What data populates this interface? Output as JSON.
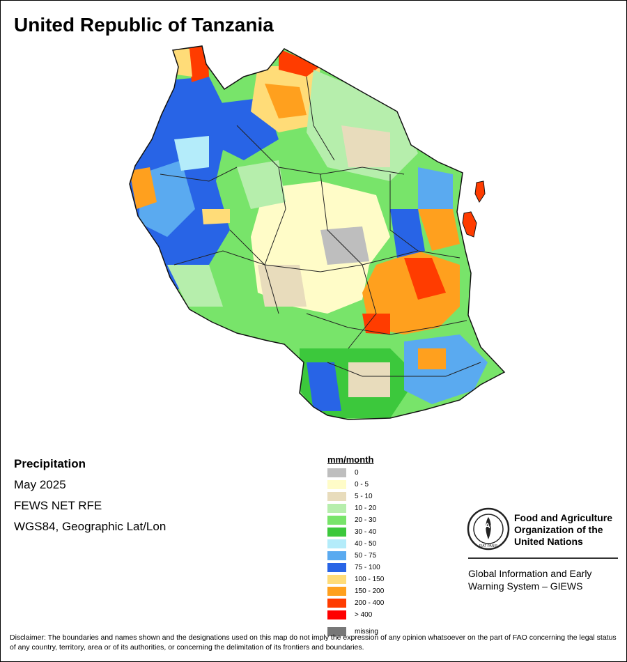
{
  "title": "United Republic of Tanzania",
  "info": {
    "variable": "Precipitation",
    "period": "May 2025",
    "source": "FEWS NET RFE",
    "projection": "WGS84, Geographic Lat/Lon"
  },
  "legend": {
    "unit": "mm/month",
    "classes": [
      {
        "label": "0",
        "color": "#bebebe"
      },
      {
        "label": "0 - 5",
        "color": "#fffcc8"
      },
      {
        "label": "5 - 10",
        "color": "#e8dcbc"
      },
      {
        "label": "10 - 20",
        "color": "#b6eeac"
      },
      {
        "label": "20 - 30",
        "color": "#78e46a"
      },
      {
        "label": "30 - 40",
        "color": "#3cc83c"
      },
      {
        "label": "40 - 50",
        "color": "#b4ecfa"
      },
      {
        "label": "50 - 75",
        "color": "#5aaaf0"
      },
      {
        "label": "75 - 100",
        "color": "#2864e6"
      },
      {
        "label": "100 - 150",
        "color": "#ffdc78"
      },
      {
        "label": "150 - 200",
        "color": "#ffa01e"
      },
      {
        "label": "200 - 400",
        "color": "#ff3c00"
      },
      {
        "label": "> 400",
        "color": "#ff0000"
      }
    ],
    "missing": {
      "label": "missing",
      "color": "#777777"
    }
  },
  "organization": {
    "logo_text": "FAO",
    "logo_motto": "FIAT PANIS",
    "name_lines": [
      "Food and Agriculture",
      "Organization of the",
      "United Nations"
    ],
    "system_lines": [
      "Global Information and Early",
      "Warning System – GIEWS"
    ]
  },
  "disclaimer": "Disclaimer: The boundaries and names shown and the designations used on this map do not imply the expression of any opinion whatsoever on the part of FAO concerning the legal status of any country, territory, area or of its authorities, or concerning the delimitation of its frontiers and boundaries."
}
